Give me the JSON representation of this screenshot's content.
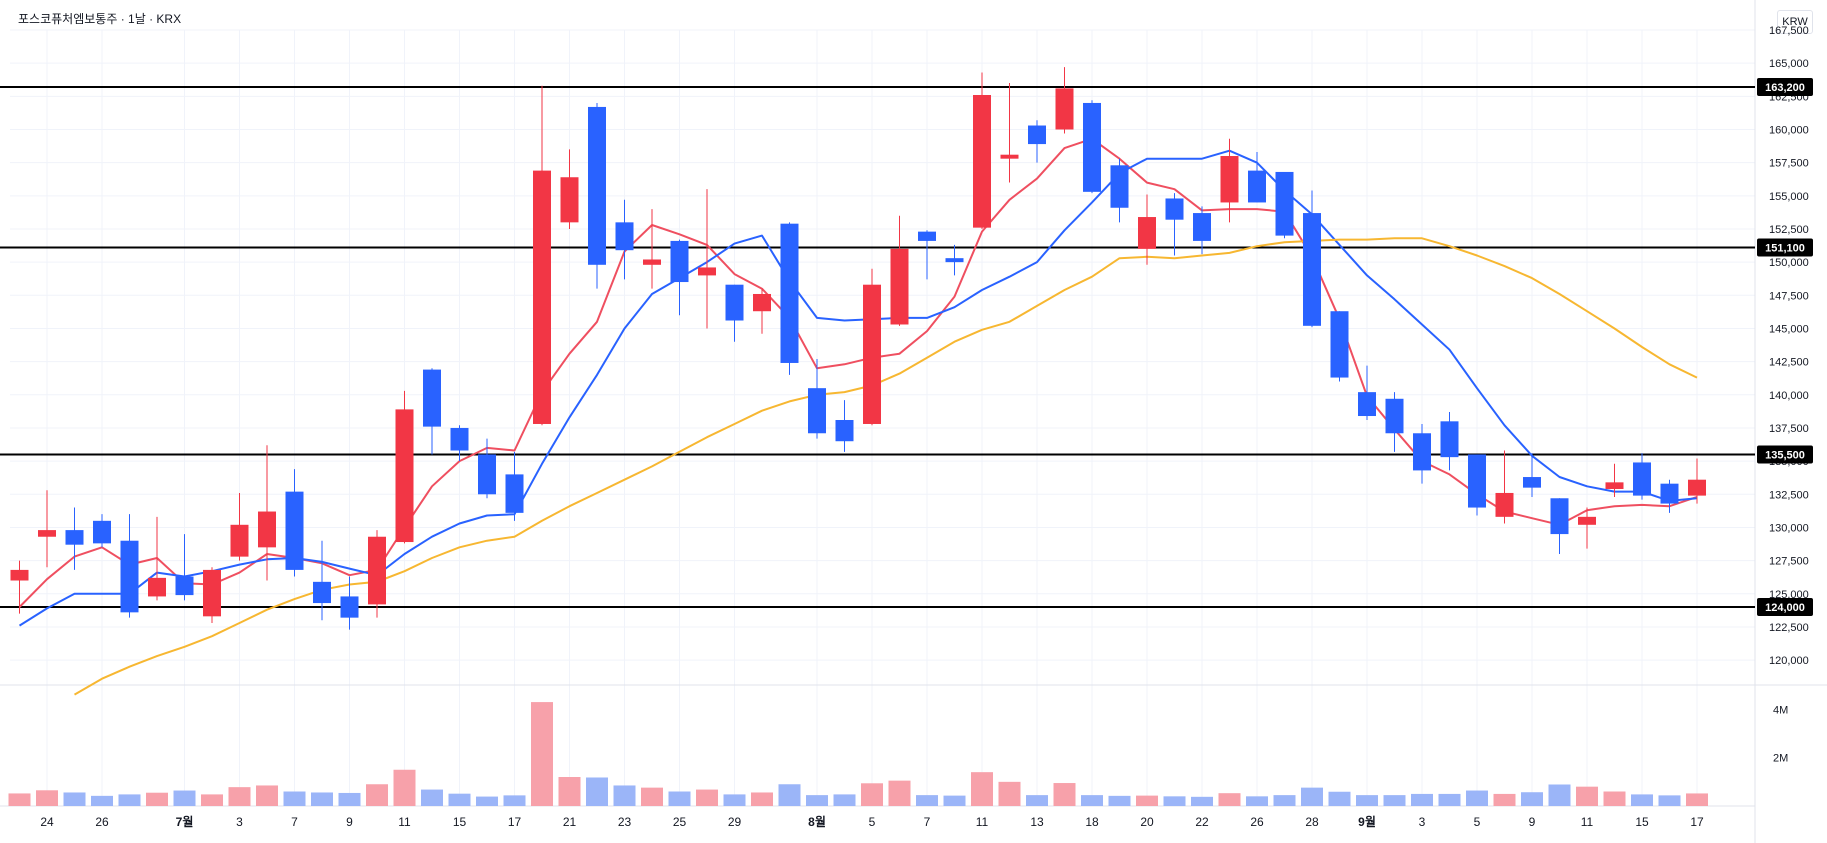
{
  "header": {
    "title": "포스코퓨처엠보통주 · 1날 · KRX",
    "currency": "KRW"
  },
  "colors": {
    "up": "#f23645",
    "down": "#2962ff",
    "ma_red": "#ef4f60",
    "ma_blue": "#2962ff",
    "ma_yellow": "#f7b731",
    "level": "#000000"
  },
  "chart_data": {
    "type": "candlestick",
    "y_axis": {
      "min": 118500,
      "max": 167500,
      "ticks": [
        120000,
        122500,
        125000,
        127500,
        130000,
        132500,
        135000,
        137500,
        140000,
        142500,
        145000,
        147500,
        150000,
        152500,
        155000,
        157500,
        160000,
        162500,
        165000,
        167500
      ]
    },
    "volume_axis": {
      "ticks": [
        {
          "value": 4000000,
          "label": "4M"
        },
        {
          "value": 2000000,
          "label": "2M"
        }
      ]
    },
    "x_labels": [
      {
        "i": 1,
        "label": "24"
      },
      {
        "i": 3,
        "label": "26"
      },
      {
        "i": 6,
        "label": "7월",
        "bold": true
      },
      {
        "i": 8,
        "label": "3"
      },
      {
        "i": 10,
        "label": "7"
      },
      {
        "i": 12,
        "label": "9"
      },
      {
        "i": 14,
        "label": "11"
      },
      {
        "i": 16,
        "label": "15"
      },
      {
        "i": 18,
        "label": "17"
      },
      {
        "i": 20,
        "label": "21"
      },
      {
        "i": 22,
        "label": "23"
      },
      {
        "i": 24,
        "label": "25"
      },
      {
        "i": 26,
        "label": "29"
      },
      {
        "i": 29,
        "label": "8월",
        "bold": true
      },
      {
        "i": 31,
        "label": "5"
      },
      {
        "i": 33,
        "label": "7"
      },
      {
        "i": 35,
        "label": "11"
      },
      {
        "i": 37,
        "label": "13"
      },
      {
        "i": 39,
        "label": "18"
      },
      {
        "i": 41,
        "label": "20"
      },
      {
        "i": 43,
        "label": "22"
      },
      {
        "i": 45,
        "label": "26"
      },
      {
        "i": 47,
        "label": "28"
      },
      {
        "i": 49,
        "label": "9월",
        "bold": true
      },
      {
        "i": 51,
        "label": "3"
      },
      {
        "i": 53,
        "label": "5"
      },
      {
        "i": 55,
        "label": "9"
      },
      {
        "i": 57,
        "label": "11"
      },
      {
        "i": 59,
        "label": "15"
      },
      {
        "i": 61,
        "label": "17"
      }
    ],
    "horizontal_levels": [
      {
        "value": 163200,
        "label": "163,200"
      },
      {
        "value": 151100,
        "label": "151,100"
      },
      {
        "value": 135500,
        "label": "135,500"
      },
      {
        "value": 124000,
        "label": "124,000"
      }
    ],
    "candles": [
      {
        "o": 126000,
        "h": 127500,
        "l": 123500,
        "c": 126800
      },
      {
        "o": 129300,
        "h": 132800,
        "l": 127000,
        "c": 129800
      },
      {
        "o": 129800,
        "h": 131500,
        "l": 126800,
        "c": 128700
      },
      {
        "o": 130500,
        "h": 131000,
        "l": 128500,
        "c": 128800
      },
      {
        "o": 129000,
        "h": 131000,
        "l": 123200,
        "c": 123600
      },
      {
        "o": 124800,
        "h": 130800,
        "l": 124500,
        "c": 126200
      },
      {
        "o": 126300,
        "h": 129500,
        "l": 124500,
        "c": 124900
      },
      {
        "o": 123300,
        "h": 127000,
        "l": 122800,
        "c": 126800
      },
      {
        "o": 127800,
        "h": 132600,
        "l": 127500,
        "c": 130200
      },
      {
        "o": 128500,
        "h": 136200,
        "l": 126000,
        "c": 131200
      },
      {
        "o": 132700,
        "h": 134400,
        "l": 126300,
        "c": 126800
      },
      {
        "o": 125900,
        "h": 129000,
        "l": 123000,
        "c": 124300
      },
      {
        "o": 124800,
        "h": 126300,
        "l": 122300,
        "c": 123200
      },
      {
        "o": 124200,
        "h": 129800,
        "l": 123200,
        "c": 129300
      },
      {
        "o": 128900,
        "h": 140300,
        "l": 128800,
        "c": 138900
      },
      {
        "o": 141900,
        "h": 142000,
        "l": 135500,
        "c": 137600
      },
      {
        "o": 137500,
        "h": 137700,
        "l": 135000,
        "c": 135800
      },
      {
        "o": 135500,
        "h": 136700,
        "l": 132200,
        "c": 132500
      },
      {
        "o": 134000,
        "h": 135700,
        "l": 130500,
        "c": 131100
      },
      {
        "o": 137800,
        "h": 163300,
        "l": 137700,
        "c": 156900
      },
      {
        "o": 153000,
        "h": 158500,
        "l": 152500,
        "c": 156400
      },
      {
        "o": 161700,
        "h": 162000,
        "l": 148000,
        "c": 149800
      },
      {
        "o": 153000,
        "h": 154700,
        "l": 148700,
        "c": 150900
      },
      {
        "o": 149800,
        "h": 154000,
        "l": 148000,
        "c": 150200
      },
      {
        "o": 151600,
        "h": 151700,
        "l": 146000,
        "c": 148500
      },
      {
        "o": 149000,
        "h": 155500,
        "l": 145000,
        "c": 149600
      },
      {
        "o": 148300,
        "h": 148300,
        "l": 144000,
        "c": 145600
      },
      {
        "o": 146300,
        "h": 148000,
        "l": 144600,
        "c": 147600
      },
      {
        "o": 152900,
        "h": 153000,
        "l": 141500,
        "c": 142400
      },
      {
        "o": 140500,
        "h": 142700,
        "l": 136700,
        "c": 137100
      },
      {
        "o": 138100,
        "h": 139600,
        "l": 135700,
        "c": 136500
      },
      {
        "o": 137800,
        "h": 149500,
        "l": 137700,
        "c": 148300
      },
      {
        "o": 145300,
        "h": 153500,
        "l": 145200,
        "c": 151000
      },
      {
        "o": 152300,
        "h": 152400,
        "l": 148700,
        "c": 151600
      },
      {
        "o": 150300,
        "h": 151300,
        "l": 149000,
        "c": 150000
      },
      {
        "o": 152600,
        "h": 164300,
        "l": 152500,
        "c": 162600
      },
      {
        "o": 157800,
        "h": 163500,
        "l": 156000,
        "c": 158100
      },
      {
        "o": 160300,
        "h": 160700,
        "l": 157500,
        "c": 158900
      },
      {
        "o": 160000,
        "h": 164700,
        "l": 159700,
        "c": 163100
      },
      {
        "o": 162000,
        "h": 162200,
        "l": 155200,
        "c": 155300
      },
      {
        "o": 157300,
        "h": 157800,
        "l": 153000,
        "c": 154100
      },
      {
        "o": 151000,
        "h": 155100,
        "l": 149800,
        "c": 153400
      },
      {
        "o": 154800,
        "h": 155200,
        "l": 150500,
        "c": 153200
      },
      {
        "o": 153700,
        "h": 154200,
        "l": 150600,
        "c": 151600
      },
      {
        "o": 154500,
        "h": 159300,
        "l": 153000,
        "c": 158000
      },
      {
        "o": 156900,
        "h": 158300,
        "l": 154500,
        "c": 154500
      },
      {
        "o": 156800,
        "h": 156800,
        "l": 151800,
        "c": 152000
      },
      {
        "o": 153700,
        "h": 155400,
        "l": 145100,
        "c": 145200
      },
      {
        "o": 146300,
        "h": 146300,
        "l": 141000,
        "c": 141300
      },
      {
        "o": 140200,
        "h": 142200,
        "l": 138100,
        "c": 138400
      },
      {
        "o": 139700,
        "h": 140200,
        "l": 135700,
        "c": 137100
      },
      {
        "o": 137100,
        "h": 137800,
        "l": 133300,
        "c": 134300
      },
      {
        "o": 138000,
        "h": 138700,
        "l": 134300,
        "c": 135300
      },
      {
        "o": 135500,
        "h": 135500,
        "l": 130900,
        "c": 131500
      },
      {
        "o": 130800,
        "h": 135800,
        "l": 130300,
        "c": 132600
      },
      {
        "o": 133800,
        "h": 135600,
        "l": 132300,
        "c": 133000
      },
      {
        "o": 132200,
        "h": 132200,
        "l": 128000,
        "c": 129500
      },
      {
        "o": 130200,
        "h": 131500,
        "l": 128400,
        "c": 130800
      },
      {
        "o": 132900,
        "h": 134800,
        "l": 132300,
        "c": 133400
      },
      {
        "o": 134900,
        "h": 135600,
        "l": 132100,
        "c": 132400
      },
      {
        "o": 133300,
        "h": 133600,
        "l": 131100,
        "c": 131800
      },
      {
        "o": 132400,
        "h": 135200,
        "l": 131800,
        "c": 133600
      }
    ],
    "volume": [
      520000,
      650000,
      560000,
      420000,
      480000,
      550000,
      640000,
      480000,
      780000,
      850000,
      600000,
      560000,
      540000,
      900000,
      1500000,
      680000,
      510000,
      390000,
      440000,
      4300000,
      1200000,
      1180000,
      850000,
      760000,
      600000,
      680000,
      480000,
      560000,
      900000,
      450000,
      480000,
      940000,
      1050000,
      450000,
      430000,
      1400000,
      1000000,
      450000,
      950000,
      450000,
      420000,
      430000,
      400000,
      380000,
      530000,
      400000,
      450000,
      760000,
      590000,
      450000,
      450000,
      500000,
      500000,
      640000,
      500000,
      570000,
      890000,
      800000,
      600000,
      480000,
      440000,
      520000
    ],
    "series": [
      {
        "name": "",
        "color": "#ef4f60",
        "values": [
          124000,
          126100,
          127800,
          128500,
          127200,
          127700,
          125800,
          125700,
          126600,
          128000,
          127700,
          127300,
          126400,
          126800,
          130000,
          133100,
          135000,
          136000,
          135800,
          140200,
          143100,
          145500,
          150800,
          152800,
          152100,
          151300,
          149100,
          148000,
          145800,
          142000,
          142300,
          142800,
          143100,
          144800,
          147400,
          152300,
          154700,
          156300,
          158600,
          159300,
          157800,
          156000,
          155500,
          153900,
          154000,
          154000,
          153800,
          150400,
          145700,
          139900,
          137400,
          135000,
          134000,
          132500,
          131200,
          130700,
          130200,
          131300,
          131600,
          131700,
          131600,
          132300
        ]
      },
      {
        "name": "",
        "color": "#2962ff",
        "values": [
          122600,
          123900,
          125000,
          125000,
          125000,
          126600,
          126300,
          126700,
          127200,
          127600,
          127700,
          127400,
          126900,
          126400,
          128000,
          129300,
          130300,
          130900,
          131000,
          134800,
          138300,
          141500,
          145000,
          147600,
          148800,
          150000,
          151400,
          152000,
          148600,
          145800,
          145600,
          145700,
          145800,
          145800,
          146600,
          147900,
          148900,
          150000,
          152400,
          154500,
          156700,
          157800,
          157800,
          157800,
          158400,
          157500,
          155400,
          153600,
          151300,
          149000,
          147200,
          145300,
          143400,
          140500,
          137700,
          135400,
          133800,
          133100,
          132700,
          132700,
          132000,
          132200
        ]
      },
      {
        "name": "",
        "color": "#f7b731",
        "values": [
          null,
          null,
          117400,
          118600,
          119500,
          120300,
          121000,
          121800,
          122800,
          123800,
          124600,
          125300,
          125700,
          125900,
          126700,
          127700,
          128500,
          129000,
          129300,
          130500,
          131600,
          132600,
          133600,
          134600,
          135700,
          136800,
          137800,
          138800,
          139500,
          140000,
          140200,
          140700,
          141600,
          142800,
          144000,
          144900,
          145500,
          146700,
          147900,
          148900,
          150300,
          150400,
          150300,
          150500,
          150700,
          151200,
          151500,
          151600,
          151700,
          151700,
          151800,
          151800,
          151200,
          150500,
          149700,
          148800,
          147600,
          146300,
          145000,
          143600,
          142300,
          141300
        ]
      }
    ]
  }
}
